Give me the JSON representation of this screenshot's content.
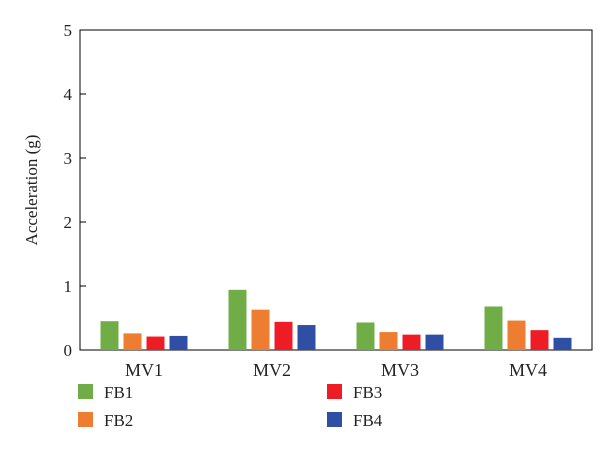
{
  "chart_data": {
    "type": "bar",
    "categories": [
      "MV1",
      "MV2",
      "MV3",
      "MV4"
    ],
    "series": [
      {
        "name": "FB1",
        "color": "#70ad47",
        "values": [
          0.45,
          0.94,
          0.43,
          0.68
        ]
      },
      {
        "name": "FB2",
        "color": "#ed7d31",
        "values": [
          0.26,
          0.63,
          0.28,
          0.46
        ]
      },
      {
        "name": "FB3",
        "color": "#ee1c25",
        "values": [
          0.21,
          0.44,
          0.24,
          0.31
        ]
      },
      {
        "name": "FB4",
        "color": "#2e4fa3",
        "values": [
          0.22,
          0.39,
          0.24,
          0.19
        ]
      }
    ],
    "ylabel": "Acceleration (g)",
    "xlabel": "",
    "ylim": [
      0,
      5
    ],
    "yticks": [
      "0",
      "1",
      "2",
      "3",
      "4",
      "5"
    ],
    "grid": false,
    "legend_position": "bottom"
  }
}
